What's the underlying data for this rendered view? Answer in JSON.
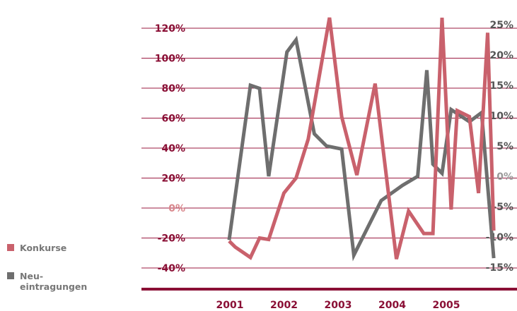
{
  "chart_data": {
    "type": "line",
    "title": "",
    "x_tick_labels": [
      "2001",
      "2002",
      "2003",
      "2004",
      "2005"
    ],
    "left_axis": {
      "ticks": [
        -40,
        -20,
        0,
        20,
        40,
        60,
        80,
        100,
        120
      ],
      "tick_labels": [
        "-40%",
        "-20%",
        "0%",
        "20%",
        "40%",
        "60%",
        "80%",
        "100%",
        "120%"
      ],
      "ylim": [
        -45,
        130
      ]
    },
    "right_axis": {
      "ticks": [
        -15,
        -10,
        -5,
        0,
        5,
        10,
        15,
        20,
        25
      ],
      "tick_labels": [
        "-15%",
        "-10%",
        "-5%",
        "0%",
        "5%",
        "10%",
        "15%",
        "20%",
        "25%"
      ],
      "ylim": [
        -16.25,
        27.5
      ]
    },
    "grid": true,
    "legend_position": "bottom-left",
    "series": [
      {
        "name": "Konkurse",
        "axis": "left",
        "color": "#c9616c",
        "x": [
          2000.5,
          2000.6,
          2000.85,
          2001.0,
          2001.15,
          2001.4,
          2001.6,
          2001.8,
          2002.15,
          2002.35,
          2002.6,
          2002.9,
          2003.25,
          2003.45,
          2003.7,
          2003.85,
          2004.0,
          2004.15,
          2004.25,
          2004.45,
          2004.6,
          2004.75,
          2004.85,
          2004.95,
          2005.1,
          2005.3,
          2005.55
        ],
        "values": [
          -22,
          -26,
          -33,
          -20,
          -21,
          10,
          20,
          46,
          127,
          61,
          22,
          83,
          -34,
          -2,
          -17,
          -17,
          127,
          -1,
          65,
          61,
          10,
          117,
          -15,
          -15,
          -15,
          -15,
          -15
        ]
      },
      {
        "name": "Neu-\neintragungen",
        "axis": "right",
        "color": "#6e6e6e",
        "x": [
          2000.5,
          2000.85,
          2001.0,
          2001.15,
          2001.45,
          2001.6,
          2001.9,
          2002.1,
          2002.35,
          2002.55,
          2003.0,
          2003.35,
          2003.6,
          2003.75,
          2003.85,
          2004.0,
          2004.15,
          2004.45,
          2004.65,
          2004.85,
          2005.05,
          2005.5
        ],
        "values": [
          -10.5,
          15,
          14.5,
          0,
          20.5,
          22.5,
          7,
          5,
          4.5,
          -13,
          -4,
          -1.5,
          0,
          17.5,
          2,
          0.5,
          11,
          9,
          10.5,
          -13.5,
          -13.5,
          -13.5
        ]
      }
    ]
  },
  "legend": [
    {
      "label": "Konkurse",
      "color": "#c9616c"
    },
    {
      "label": "Neu-\neintragungen",
      "color": "#6e6e6e"
    }
  ]
}
